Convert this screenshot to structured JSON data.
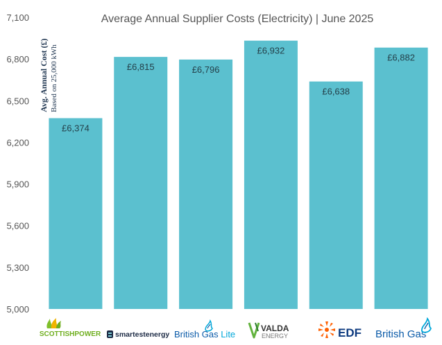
{
  "chart_data": {
    "type": "bar",
    "title": "Average Annual Supplier Costs (Electricity) | June 2025",
    "ylabel": "Avg. Annual Cost (£)",
    "ylabel_sub": "Based on 25,000 kWh",
    "xlabel": "",
    "ylim": [
      5000,
      7100
    ],
    "yticks": [
      5000,
      5300,
      5600,
      5900,
      6200,
      6500,
      6800,
      7100
    ],
    "ytick_labels": [
      "5,000",
      "5,300",
      "5,600",
      "5,900",
      "6,200",
      "6,500",
      "6,800",
      "7,100"
    ],
    "categories": [
      "SCOTTISHPOWER",
      "smartestenergy",
      "British Gas Lite",
      "VALDA ENERGY",
      "EDF",
      "British Gas"
    ],
    "values": [
      6374,
      6815,
      6796,
      6932,
      6638,
      6882
    ],
    "data_labels": [
      "£6,374",
      "£6,815",
      "£6,796",
      "£6,932",
      "£6,638",
      "£6,882"
    ],
    "bar_color": "#5bc0cf",
    "grid": false,
    "legend": "none"
  },
  "logos": {
    "scottishpower": {
      "text": "SCOTTISHPOWER",
      "color": "#6fae1e",
      "icon": "scottishpower-flame-icon"
    },
    "smartest": {
      "text": "smartestenergy",
      "color": "#1c2a44",
      "icon": "smartestenergy-s-icon"
    },
    "bglite": {
      "text": "British Gas",
      "text2": "Lite",
      "color": "#0a5aa8",
      "color2": "#00a7d9",
      "icon": "british-gas-flame-icon"
    },
    "valda": {
      "text": "VALDA",
      "text2": "ENERGY",
      "color": "#333333",
      "accent": "#63b33e",
      "icon": "valda-v-icon"
    },
    "edf": {
      "text": "EDF",
      "color": "#ff5f00",
      "accent": "#0d3a7f",
      "icon": "edf-sun-icon"
    },
    "britishgas": {
      "text": "British Gas",
      "color": "#0a5aa8",
      "icon": "british-gas-flame-icon"
    }
  }
}
